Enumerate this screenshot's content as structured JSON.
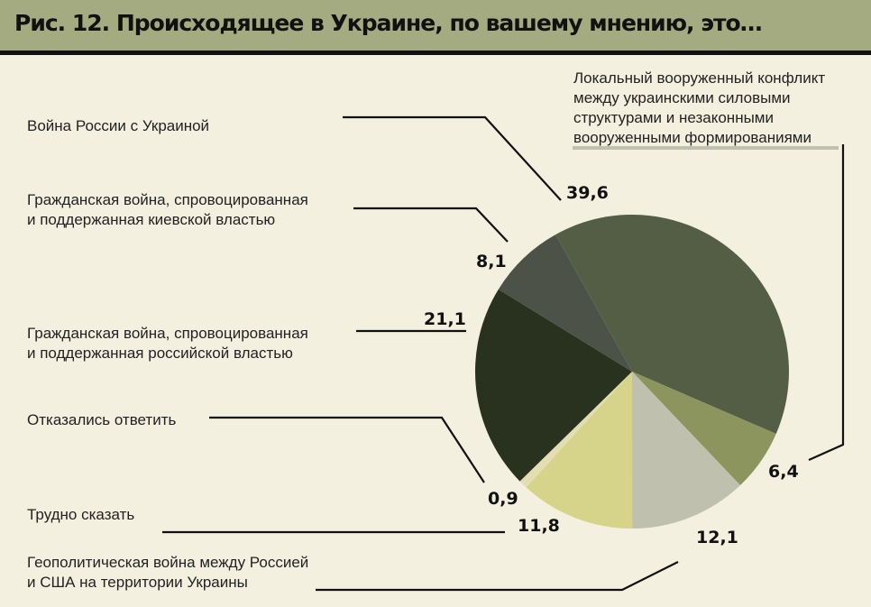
{
  "chart_data": {
    "type": "pie",
    "title": "Рис. 12. Происходящее в Украине, по вашему мнению, это…",
    "slices": [
      {
        "label": "Война России с Украиной",
        "value": 39.6,
        "value_label": "39,6",
        "color": "#545e45"
      },
      {
        "label": "Локальный вооруженный конфликт между украинскими силовыми структурами и незаконными вооруженными формированиями",
        "value": 6.4,
        "value_label": "6,4",
        "color": "#8c955e"
      },
      {
        "label": "Геополитическая война между Россией и США на территории Украины",
        "value": 12.1,
        "value_label": "12,1",
        "color": "#c0c0ae"
      },
      {
        "label": "Трудно сказать",
        "value": 11.8,
        "value_label": "11,8",
        "color": "#d6d38a"
      },
      {
        "label": "Отказались ответить",
        "value": 0.9,
        "value_label": "0,9",
        "color": "#e2ddb2"
      },
      {
        "label": "Гражданская война, спровоцированная и поддержанная российской властью",
        "value": 21.1,
        "value_label": "21,1",
        "color": "#28321f"
      },
      {
        "label": "Гражданская война, спровоцированная и поддержанная киевской властью",
        "value": 8.1,
        "value_label": "8,1",
        "color": "#4c5247"
      }
    ],
    "label_lines": {
      "0": [
        "Война России с Украиной"
      ],
      "1": [
        "Локальный вооруженный конфликт",
        "между украинскими силовыми",
        "структурами и незаконными",
        "вооруженными формированиями"
      ],
      "2": [
        "Геополитическая война между Россией",
        "и США на территории Украины"
      ],
      "3": [
        "Трудно сказать"
      ],
      "4": [
        "Отказались ответить"
      ],
      "5": [
        "Гражданская война, спровоцированная",
        "и поддержанная российской властью"
      ],
      "6": [
        "Гражданская война, спровоцированная",
        "и поддержанная киевской властью"
      ]
    }
  },
  "colors": {
    "header_bg": "#a5ab80",
    "page_bg": "#f3f0df"
  }
}
